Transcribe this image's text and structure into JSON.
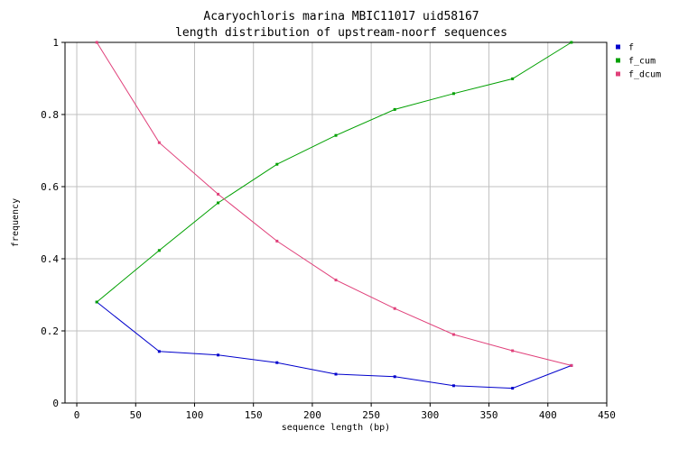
{
  "chart_data": {
    "type": "line",
    "title": "Acaryochloris marina MBIC11017 uid58167",
    "subtitle": "length distribution of upstream-noorf sequences",
    "xlabel": "sequence length (bp)",
    "ylabel": "frequency",
    "xlim": [
      -10,
      450
    ],
    "ylim": [
      0,
      1
    ],
    "xticks": [
      0,
      50,
      100,
      150,
      200,
      250,
      300,
      350,
      400,
      450
    ],
    "yticks": [
      0,
      0.2,
      0.4,
      0.6,
      0.8,
      1
    ],
    "ytick_labels": [
      "0",
      "0.2",
      "0.4",
      "0.6",
      "0.8",
      "1"
    ],
    "grid": true,
    "legend_position": "top-right",
    "x": [
      17,
      70,
      120,
      170,
      220,
      270,
      320,
      370,
      420
    ],
    "series": [
      {
        "name": "f",
        "color": "#0000cc",
        "values": [
          0.28,
          0.143,
          0.133,
          0.112,
          0.08,
          0.073,
          0.048,
          0.041,
          0.104
        ]
      },
      {
        "name": "f_cum",
        "color": "#00a000",
        "values": [
          0.28,
          0.423,
          0.555,
          0.662,
          0.742,
          0.814,
          0.858,
          0.899,
          1.0
        ]
      },
      {
        "name": "f_dcum",
        "color": "#e0407a",
        "values": [
          1.0,
          0.722,
          0.579,
          0.449,
          0.341,
          0.262,
          0.19,
          0.145,
          0.104
        ]
      }
    ]
  }
}
